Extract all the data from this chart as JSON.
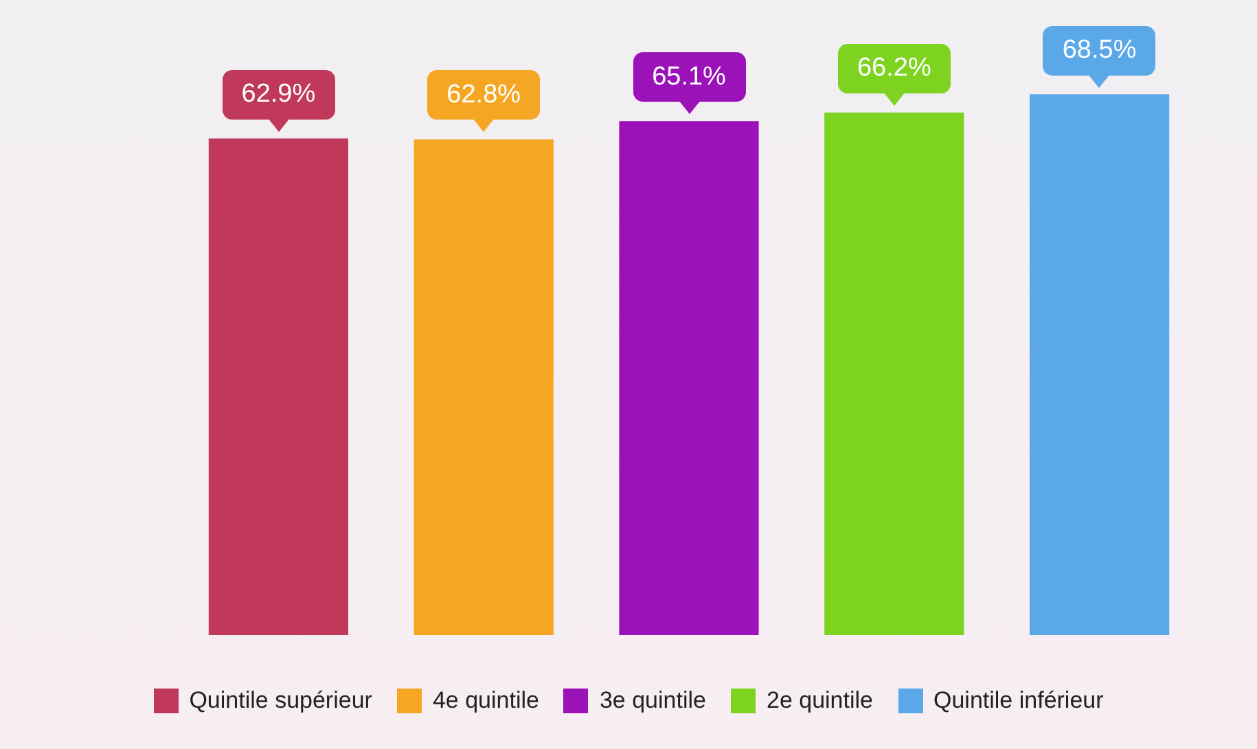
{
  "chart_data": {
    "type": "bar",
    "categories": [
      "Quintile supérieur",
      "4e quintile",
      "3e quintile",
      "2e quintile",
      "Quintile inférieur"
    ],
    "series": [
      {
        "colors": [
          "#c0385a",
          "#f5a623",
          "#9b12b8",
          "#7ed321",
          "#5ba8e8"
        ],
        "values": [
          62.9,
          62.8,
          65.1,
          66.2,
          68.5
        ],
        "value_labels": [
          "62.9%",
          "62.8%",
          "65.1%",
          "66.2%",
          "68.5%"
        ]
      }
    ],
    "tick_labels": false,
    "grid": false
  }
}
